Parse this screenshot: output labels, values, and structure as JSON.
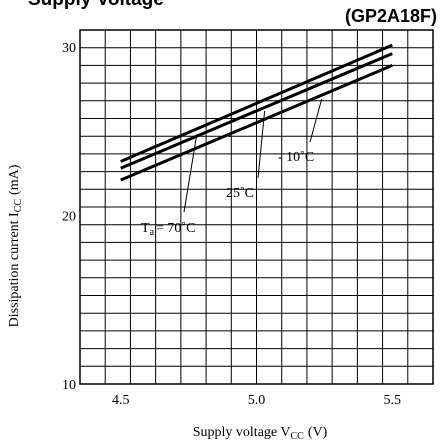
{
  "chart_data": {
    "type": "line",
    "title": "Supply Voltage",
    "subtitle": "(GP2A18F)",
    "xlabel": "Supply voltage V",
    "xlabel_sub": "CC",
    "xlabel_unit": "(V)",
    "ylabel": "Dissipation current I",
    "ylabel_sub": "CC",
    "ylabel_unit": "(mA)",
    "xlim": [
      4.35,
      5.65
    ],
    "ylim": [
      10,
      31
    ],
    "xticks": [
      "4.5",
      "5.0",
      "5.5"
    ],
    "yticks": [
      "10",
      "20",
      "30"
    ],
    "grid": true,
    "series": [
      {
        "name": "T_a = 70˚C",
        "x": [
          4.5,
          5.5
        ],
        "y": [
          23.2,
          30.1
        ]
      },
      {
        "name": "25˚C",
        "x": [
          4.5,
          5.5
        ],
        "y": [
          22.8,
          29.6
        ]
      },
      {
        "name": "- 10˚C",
        "x": [
          4.5,
          5.5
        ],
        "y": [
          22.1,
          28.9
        ]
      }
    ],
    "annotations": [
      {
        "text": "T",
        "sub": "a",
        "rest": "= 70˚C",
        "series": 0
      },
      {
        "text": "25˚C",
        "series": 1
      },
      {
        "text": "- 10˚C",
        "series": 2
      }
    ]
  }
}
